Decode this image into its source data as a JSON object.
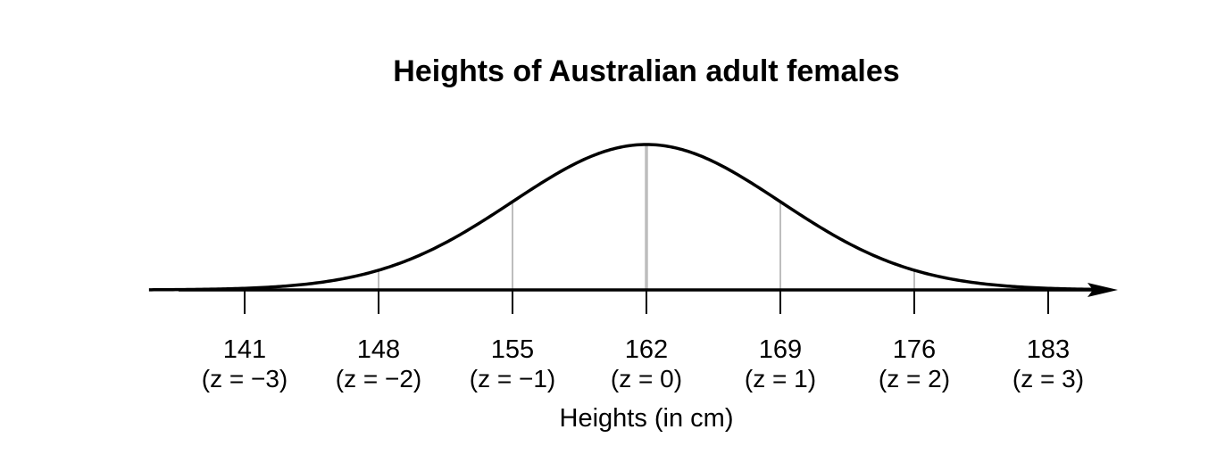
{
  "chart_data": {
    "type": "line",
    "title": "Heights of Australian adult females",
    "xlabel": "Heights (in cm)",
    "ylabel": "",
    "distribution": "normal",
    "mean": 162,
    "sd": 7,
    "xlim": [
      136,
      186
    ],
    "ticks": [
      {
        "value": 141,
        "label": "141",
        "z_text": "(z = −3)"
      },
      {
        "value": 148,
        "label": "148",
        "z_text": "(z = −2)"
      },
      {
        "value": 155,
        "label": "155",
        "z_text": "(z = −1)"
      },
      {
        "value": 162,
        "label": "162",
        "z_text": "(z = 0)"
      },
      {
        "value": 169,
        "label": "169",
        "z_text": "(z = 1)"
      },
      {
        "value": 176,
        "label": "176",
        "z_text": "(z = 2)"
      },
      {
        "value": 183,
        "label": "183",
        "z_text": "(z = 3)"
      }
    ],
    "sd_lines": [
      141,
      148,
      155,
      162,
      169,
      176,
      183
    ],
    "grid": false,
    "legend": "none",
    "colors": {
      "curve": "#000000",
      "sd_lines": "#bdbdbd",
      "axis": "#000000"
    }
  }
}
